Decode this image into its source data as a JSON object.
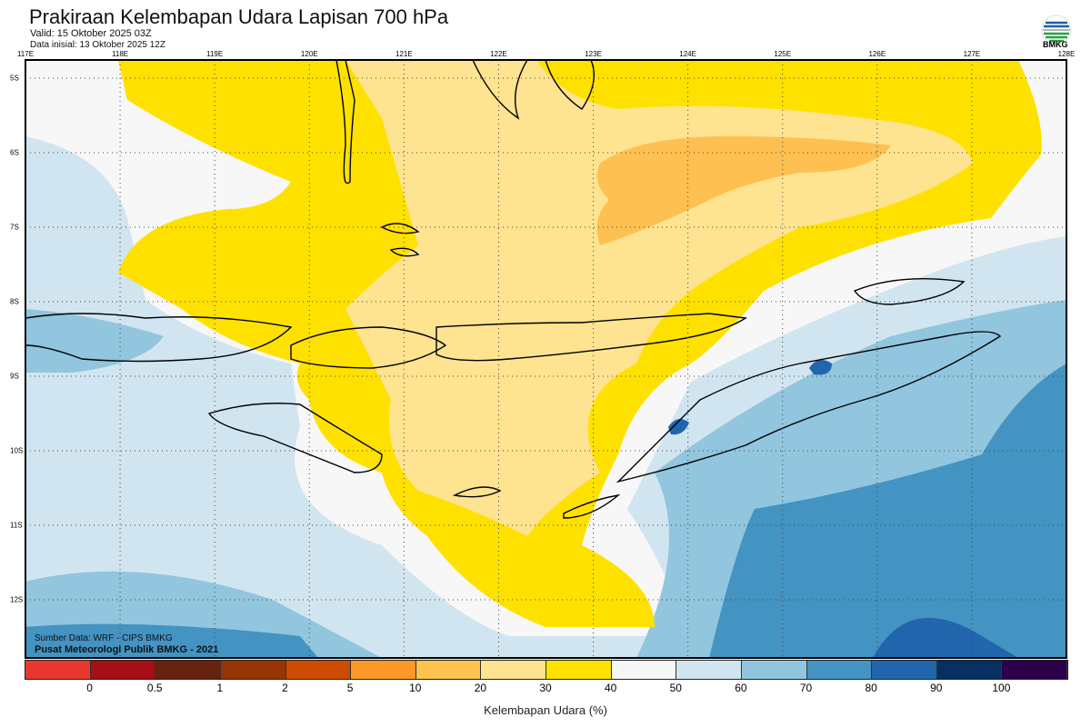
{
  "header": {
    "title": "Prakiraan Kelembapan Udara Lapisan 700 hPa",
    "valid": "Valid: 15 Oktober 2025 03Z",
    "init": "Data inisial: 13 Oktober 2025 12Z",
    "logo": "BMKG"
  },
  "axes": {
    "lon": [
      "117E",
      "118E",
      "119E",
      "120E",
      "121E",
      "122E",
      "123E",
      "124E",
      "125E",
      "126E",
      "127E",
      "128E"
    ],
    "lat": [
      "5S",
      "6S",
      "7S",
      "8S",
      "9S",
      "10S",
      "11S",
      "12S"
    ]
  },
  "footer": {
    "source": "Sumber Data: WRF - CIPS BMKG",
    "org": "Pusat Meteorologi Publik BMKG - 2021"
  },
  "colorbar": {
    "title": "Kelembapan Udara (%)",
    "labels": [
      "0",
      "0.5",
      "1",
      "2",
      "5",
      "10",
      "20",
      "30",
      "40",
      "50",
      "60",
      "70",
      "80",
      "90",
      "100"
    ],
    "colors": [
      "#E8392F",
      "#A50F15",
      "#67230F",
      "#993404",
      "#CC4C02",
      "#FE9929",
      "#FEC44F",
      "#FEE391",
      "#FFE100",
      "#F7F7F7",
      "#D1E5F0",
      "#92C5DE",
      "#4393C3",
      "#2166AC",
      "#053061",
      "#2D004B"
    ]
  }
}
